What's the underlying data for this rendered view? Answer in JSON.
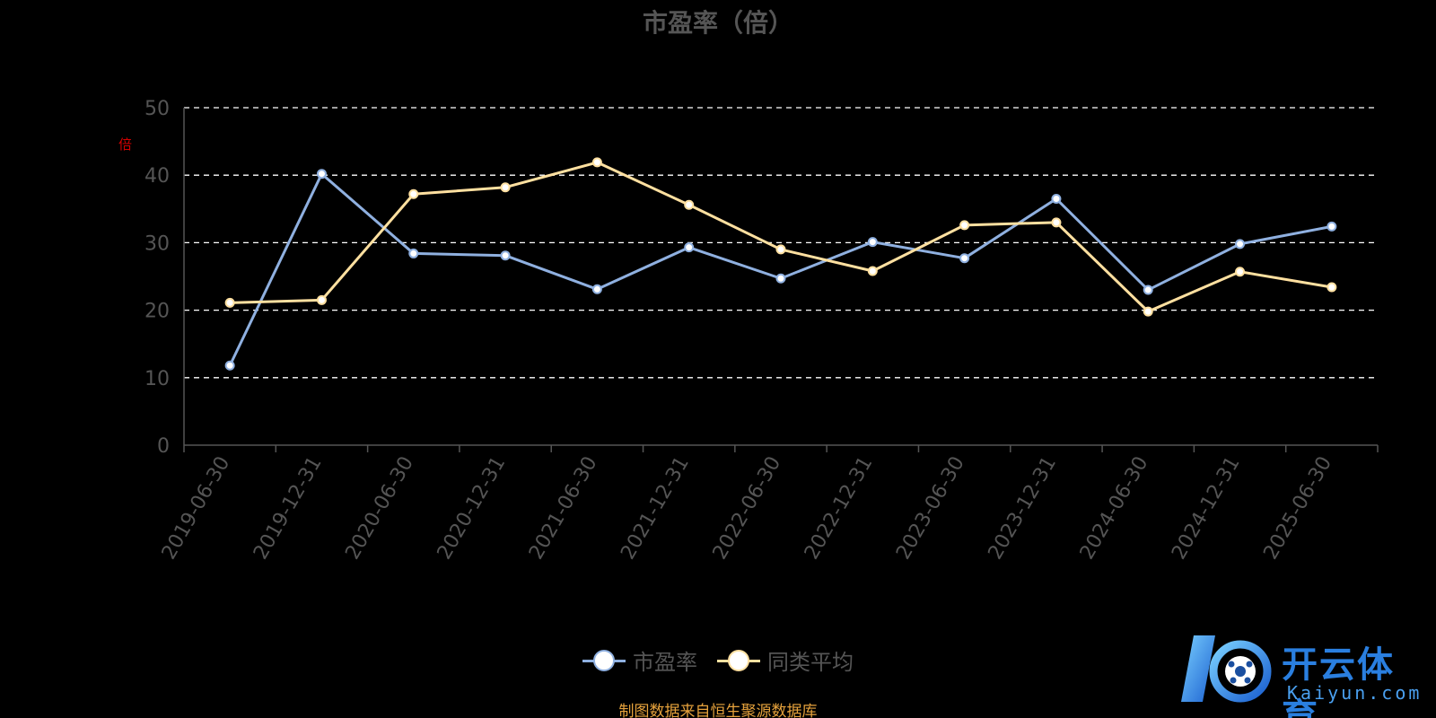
{
  "chart_data": {
    "type": "line",
    "title": "市盈率（倍）",
    "ylabel": "倍",
    "categories": [
      "2019-06-30",
      "2019-12-31",
      "2020-06-30",
      "2020-12-31",
      "2021-06-30",
      "2021-12-31",
      "2022-06-30",
      "2022-12-31",
      "2023-06-30",
      "2023-12-31",
      "2024-06-30",
      "2024-12-31",
      "2025-06-30"
    ],
    "yticks": [
      "0",
      "10",
      "20",
      "30",
      "40",
      "50"
    ],
    "ylim": [
      0,
      50
    ],
    "grid": true,
    "legend_position": "bottom",
    "series": [
      {
        "name": "市盈率",
        "color": "#8fb0e0",
        "values": [
          11.8,
          40.2,
          28.4,
          28.1,
          23.1,
          29.3,
          24.7,
          30.1,
          27.7,
          36.5,
          23.0,
          29.8,
          32.4
        ]
      },
      {
        "name": "同类平均",
        "color": "#ffe0a0",
        "values": [
          21.1,
          21.5,
          37.2,
          38.2,
          41.9,
          35.6,
          29.0,
          25.8,
          32.6,
          33.0,
          19.8,
          25.7,
          23.4
        ]
      }
    ]
  },
  "footer": {
    "source": "制图数据来自恒生聚源数据库"
  },
  "logo": {
    "cn": "开云体育",
    "en": "Kaiyun.com"
  }
}
